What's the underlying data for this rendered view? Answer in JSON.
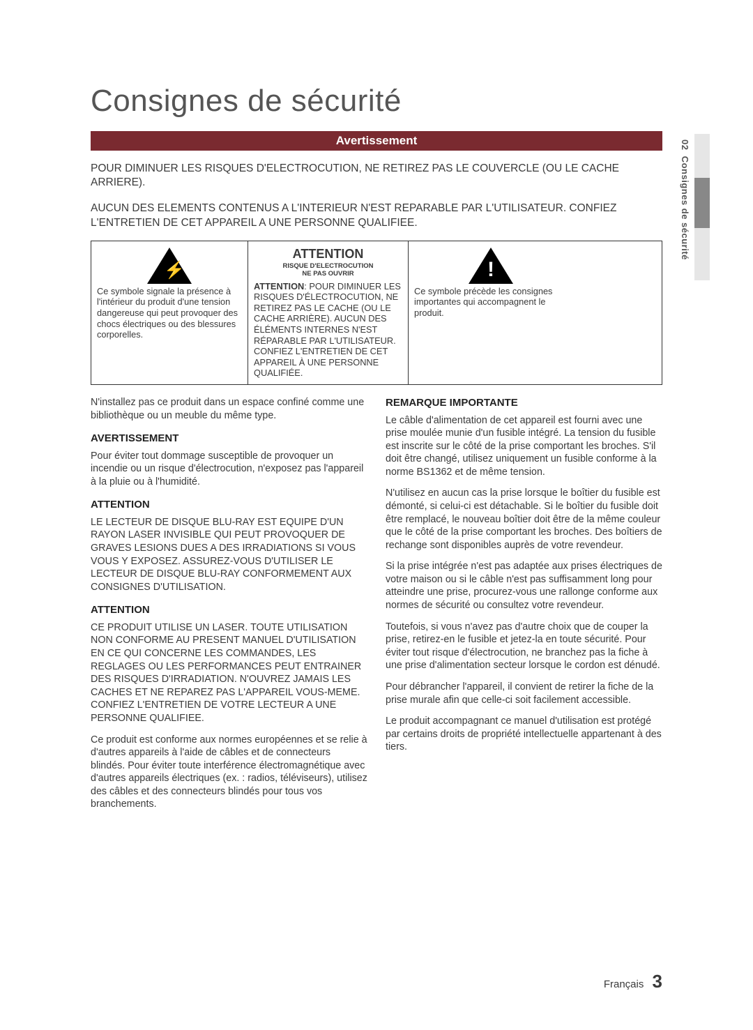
{
  "title": "Consignes de sécurité",
  "banner": "Avertissement",
  "intro1": "POUR DIMINUER LES RISQUES D'ELECTROCUTION, NE RETIREZ PAS LE COUVERCLE (OU LE CACHE ARRIERE).",
  "intro2": "AUCUN DES ELEMENTS CONTENUS A L'INTERIEUR N'EST REPARABLE PAR L'UTILISATEUR. CONFIEZ L'ENTRETIEN DE CET APPAREIL A UNE PERSONNE QUALIFIEE.",
  "box": {
    "left": "Ce symbole signale la présence à l'intérieur du produit d'une tension dangereuse qui peut provoquer des chocs électriques ou des blessures corporelles.",
    "mid_head": "ATTENTION",
    "mid_sub1": "RISQUE D'ELECTROCUTION",
    "mid_sub2": "NE PAS OUVRIR",
    "mid_body_bold": "ATTENTION",
    "mid_body": ": POUR DIMINUER LES RISQUES D'ÉLECTROCUTION, NE RETIREZ PAS LE CACHE (OU LE CACHE ARRIÈRE). AUCUN DES ÉLÉMENTS INTERNES N'EST RÉPARABLE PAR L'UTILISATEUR. CONFIEZ L'ENTRETIEN DE CET APPAREIL À UNE PERSONNE QUALIFIÉE.",
    "right": "Ce symbole précède les consignes importantes qui accompagnent le produit."
  },
  "left_col": {
    "p1": "N'installez pas ce produit dans un espace confiné comme une bibliothèque ou un meuble du même type.",
    "h1": "AVERTISSEMENT",
    "p2": "Pour éviter tout dommage susceptible de provoquer un incendie ou un risque d'électrocution, n'exposez pas l'appareil à la pluie ou à l'humidité.",
    "h2": "ATTENTION",
    "p3": "LE LECTEUR DE DISQUE BLU-RAY EST EQUIPE D'UN RAYON LASER INVISIBLE QUI PEUT PROVOQUER DE GRAVES LESIONS DUES A DES IRRADIATIONS SI VOUS VOUS Y EXPOSEZ. ASSUREZ-VOUS D'UTILISER LE LECTEUR DE DISQUE BLU-RAY CONFORMEMENT AUX CONSIGNES D'UTILISATION.",
    "h3": "ATTENTION",
    "p4": "CE PRODUIT UTILISE UN LASER. TOUTE UTILISATION NON CONFORME AU PRESENT MANUEL D'UTILISATION EN CE QUI CONCERNE LES COMMANDES, LES REGLAGES OU LES PERFORMANCES PEUT ENTRAINER DES RISQUES D'IRRADIATION. N'OUVREZ JAMAIS LES CACHES ET NE REPAREZ PAS L'APPAREIL VOUS-MEME. CONFIEZ L'ENTRETIEN DE VOTRE LECTEUR A UNE PERSONNE QUALIFIEE.",
    "p5": "Ce produit est conforme aux normes européennes et se relie à d'autres appareils à l'aide de câbles et de connecteurs blindés. Pour éviter toute interférence électromagnétique avec d'autres appareils électriques (ex. : radios, téléviseurs), utilisez des câbles et des connecteurs blindés pour tous vos branchements."
  },
  "right_col": {
    "h1": "REMARQUE IMPORTANTE",
    "p1": "Le câble d'alimentation de cet appareil est fourni avec une prise moulée munie d'un fusible intégré. La tension du fusible est inscrite sur le côté de la prise comportant les broches. S'il doit être changé, utilisez uniquement un fusible conforme à la norme BS1362 et de même tension.",
    "p2": "N'utilisez en aucun cas la prise lorsque le boîtier du fusible est démonté, si celui-ci est détachable. Si le boîtier du fusible doit être remplacé, le nouveau boîtier doit être de la même couleur que le côté de la prise comportant les broches. Des boîtiers de rechange sont disponibles auprès de votre revendeur.",
    "p3": "Si la prise intégrée n'est pas adaptée aux prises électriques de votre maison ou si le câble n'est pas suffisamment long pour atteindre une prise, procurez-vous une rallonge conforme aux normes de sécurité ou consultez votre revendeur.",
    "p4": "Toutefois, si vous n'avez pas d'autre choix que de couper la prise, retirez-en le fusible et jetez-la en toute sécurité. Pour éviter tout risque d'électrocution, ne branchez pas la fiche à une prise d'alimentation secteur lorsque le cordon est dénudé.",
    "p5": "Pour débrancher l'appareil, il convient de retirer la fiche de la prise murale afin que celle-ci soit facilement accessible.",
    "p6": "Le produit accompagnant ce manuel d'utilisation est protégé par certains droits de propriété intellectuelle appartenant à des tiers."
  },
  "side": {
    "num": "02",
    "label": "Consignes de sécurité"
  },
  "footer": {
    "lang": "Français",
    "page": "3"
  }
}
